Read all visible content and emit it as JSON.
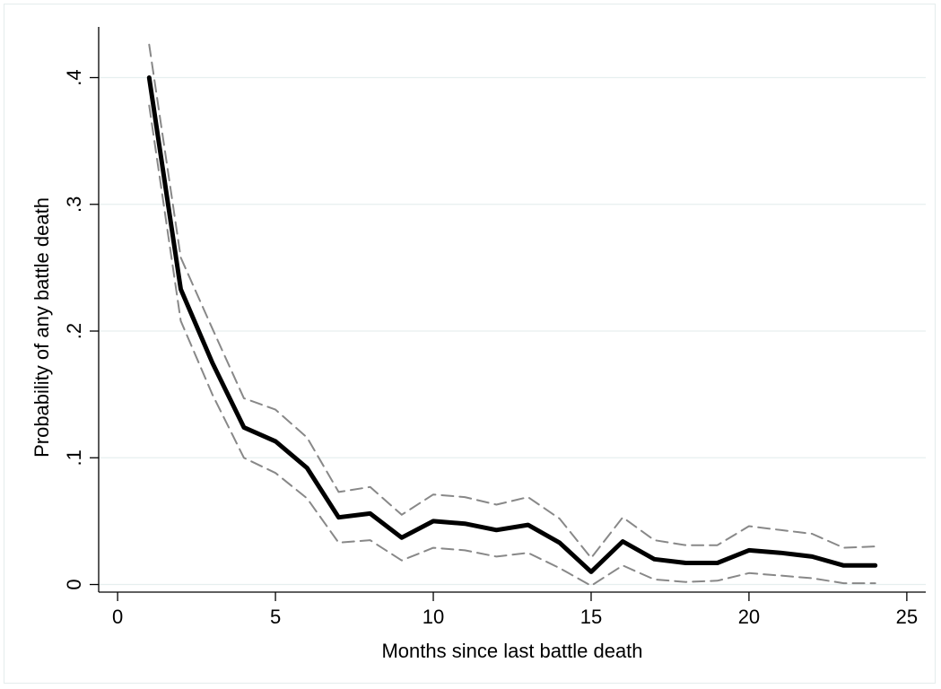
{
  "chart_data": {
    "type": "line",
    "title": "",
    "xlabel": "Months since last battle death",
    "ylabel": "Probability of any battle death",
    "xlim": [
      -0.6,
      25.6
    ],
    "ylim": [
      -0.006,
      0.44
    ],
    "x_ticks": [
      0,
      5,
      10,
      15,
      20,
      25
    ],
    "x_tick_labels": [
      "0",
      "5",
      "10",
      "15",
      "20",
      "25"
    ],
    "y_ticks": [
      0,
      0.1,
      0.2,
      0.3,
      0.4
    ],
    "y_tick_labels": [
      "0",
      ".1",
      ".2",
      ".3",
      ".4"
    ],
    "grid": true,
    "legend": "none",
    "x": [
      1,
      2,
      3,
      4,
      5,
      6,
      7,
      8,
      9,
      10,
      11,
      12,
      13,
      14,
      15,
      16,
      17,
      18,
      19,
      20,
      21,
      22,
      23,
      24
    ],
    "series": [
      {
        "role": "estimate",
        "color": "#000000",
        "style": "solid",
        "values": [
          0.4,
          0.233,
          0.175,
          0.124,
          0.113,
          0.092,
          0.053,
          0.056,
          0.037,
          0.05,
          0.048,
          0.043,
          0.047,
          0.033,
          0.01,
          0.034,
          0.02,
          0.017,
          0.017,
          0.027,
          0.025,
          0.022,
          0.015,
          0.015
        ]
      },
      {
        "role": "upper-bound",
        "color": "#888888",
        "style": "dashed",
        "values": [
          0.426,
          0.258,
          0.202,
          0.147,
          0.138,
          0.116,
          0.073,
          0.077,
          0.055,
          0.071,
          0.069,
          0.063,
          0.069,
          0.052,
          0.021,
          0.053,
          0.035,
          0.031,
          0.031,
          0.046,
          0.043,
          0.04,
          0.029,
          0.03
        ]
      },
      {
        "role": "lower-bound",
        "color": "#888888",
        "style": "dashed",
        "values": [
          0.378,
          0.208,
          0.15,
          0.1,
          0.088,
          0.068,
          0.033,
          0.035,
          0.019,
          0.029,
          0.027,
          0.022,
          0.025,
          0.013,
          -0.001,
          0.015,
          0.004,
          0.002,
          0.003,
          0.009,
          0.007,
          0.005,
          0.001,
          0.001
        ]
      }
    ]
  }
}
